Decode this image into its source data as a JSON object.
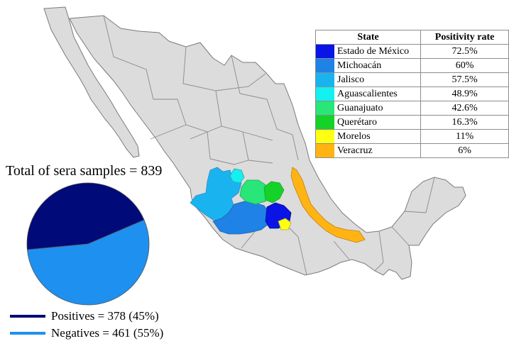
{
  "legend": {
    "header_state": "State",
    "header_rate": "Positivity rate",
    "rows": [
      {
        "state": "Estado de México",
        "rate": "72.5%",
        "color": "#0a14e6"
      },
      {
        "state": "Michoacán",
        "rate": "60%",
        "color": "#1e82e6"
      },
      {
        "state": "Jalisco",
        "rate": "57.5%",
        "color": "#19b4f0"
      },
      {
        "state": "Aguascalientes",
        "rate": "48.9%",
        "color": "#14f0f0"
      },
      {
        "state": "Guanajuato",
        "rate": "42.6%",
        "color": "#28e678"
      },
      {
        "state": "Querétaro",
        "rate": "16.3%",
        "color": "#14d228"
      },
      {
        "state": "Morelos",
        "rate": "11%",
        "color": "#ffff14"
      },
      {
        "state": "Veracruz",
        "rate": "6%",
        "color": "#ffb414"
      }
    ]
  },
  "pie": {
    "title": "Total of sera samples = 839",
    "slices": [
      {
        "label": "Positives = 378 (45%)",
        "value": 378,
        "color": "#000a78"
      },
      {
        "label": "Negatives = 461 (55%)",
        "value": 461,
        "color": "#1e90f0"
      }
    ]
  },
  "colors": {
    "land": "#dcdcdc",
    "border": "#7a7a7a"
  }
}
